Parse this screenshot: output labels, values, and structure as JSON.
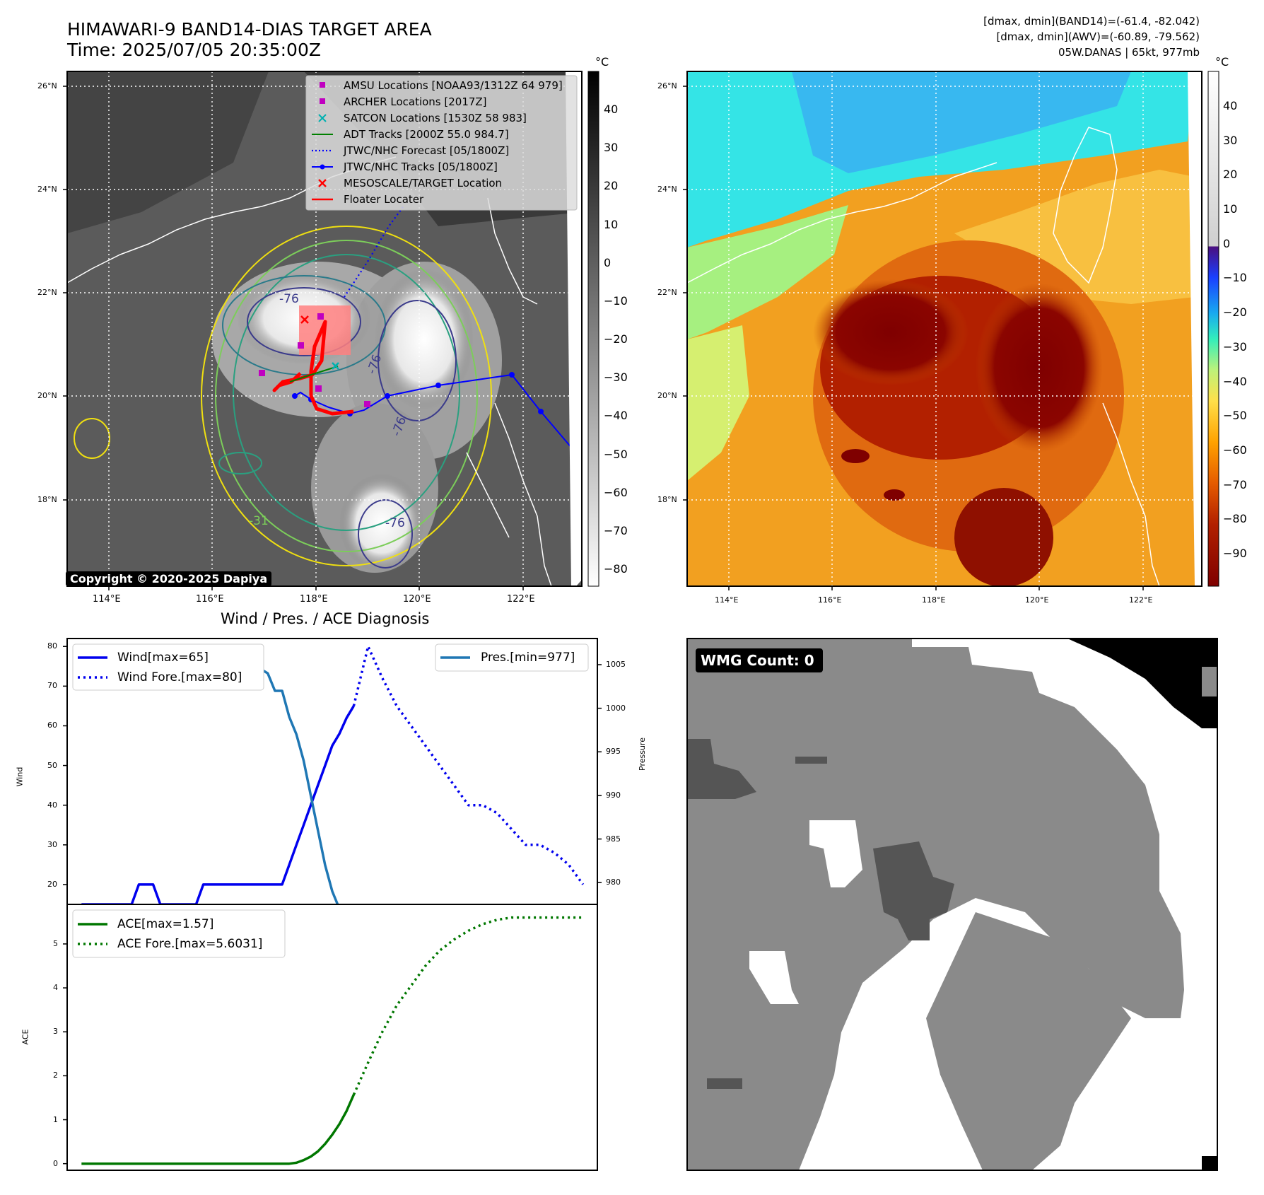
{
  "header": {
    "title_line1": "HIMAWARI-9 BAND14-DIAS TARGET AREA",
    "title_line2": "Time: 2025/07/05 20:35:00Z",
    "right_line1": "[dmax, dmin](BAND14)=(-61.4, -82.042)",
    "right_line2": "[dmax, dmin](AWV)=(-60.89, -79.562)",
    "right_line3": "05W.DANAS | 65kt, 977mb"
  },
  "map": {
    "lon_ticks": [
      "114°E",
      "116°E",
      "118°E",
      "120°E",
      "122°E"
    ],
    "lat_ticks": [
      "26°N",
      "24°N",
      "22°N",
      "20°N",
      "18°N"
    ],
    "contour_labels": [
      "-76",
      "-76",
      "-76",
      "-76",
      "-31"
    ],
    "copyright": "Copyright © 2020-2025 Dapiya",
    "legend": [
      {
        "label": "AMSU Locations [NOAA93/1312Z 64 979]",
        "color": "#c000c0",
        "marker": "square"
      },
      {
        "label": "ARCHER Locations [2017Z]",
        "color": "#c000c0",
        "marker": "square"
      },
      {
        "label": "SATCON Locations [1530Z 58 983]",
        "color": "#00b0b0",
        "marker": "x"
      },
      {
        "label": "ADT Tracks [2000Z 55.0 984.7]",
        "color": "#008000",
        "marker": "line"
      },
      {
        "label": "JTWC/NHC Forecast [05/1800Z]",
        "color": "#0000ff",
        "marker": "dotted"
      },
      {
        "label": "JTWC/NHC Tracks [05/1800Z]",
        "color": "#0000ff",
        "marker": "line-dot"
      },
      {
        "label": "MESOSCALE/TARGET Location",
        "color": "#ff0000",
        "marker": "x"
      },
      {
        "label": "Floater Locater",
        "color": "#ff0000",
        "marker": "line"
      }
    ]
  },
  "colorbar_gray": {
    "unit": "°C",
    "ticks": [
      "40",
      "30",
      "20",
      "10",
      "0",
      "−10",
      "−20",
      "−30",
      "−40",
      "−50",
      "−60",
      "−70",
      "−80"
    ]
  },
  "colorbar_color": {
    "unit": "°C",
    "ticks": [
      "40",
      "30",
      "20",
      "10",
      "0",
      "−10",
      "−20",
      "−30",
      "−40",
      "−50",
      "−60",
      "−70",
      "−80",
      "−90"
    ]
  },
  "chart_data": [
    {
      "type": "line",
      "title": "Wind / Pres. / ACE Diagnosis",
      "ylabel": "Wind",
      "ylabel_right": "Pressure",
      "ylim": [
        15,
        82
      ],
      "ylim_right": [
        977.5,
        1008
      ],
      "yticks": [
        20,
        30,
        40,
        50,
        60,
        70,
        80
      ],
      "yticks_right": [
        980,
        985,
        990,
        995,
        1000,
        1005
      ],
      "legend_left": [
        "Wind[max=65]",
        "Wind Fore.[max=80]"
      ],
      "legend_right": [
        "Pres.[min=977]"
      ],
      "series": [
        {
          "name": "Wind[max=65]",
          "axis": "left",
          "style": "solid",
          "color": "#0000ee",
          "x": [
            0,
            1,
            2,
            3,
            4,
            5,
            6,
            7,
            8,
            9,
            10,
            11,
            12,
            13,
            14,
            15,
            16,
            17,
            18,
            19,
            20,
            21,
            22,
            23,
            24,
            25,
            26,
            27,
            28,
            29,
            30,
            31,
            32,
            33,
            34,
            35,
            36,
            37,
            38
          ],
          "values": [
            15,
            15,
            15,
            15,
            15,
            15,
            15,
            15,
            20,
            20,
            20,
            15,
            15,
            15,
            15,
            15,
            15,
            20,
            20,
            20,
            20,
            20,
            20,
            20,
            20,
            20,
            20,
            20,
            20,
            25,
            30,
            35,
            40,
            45,
            50,
            55,
            58,
            62,
            65
          ]
        },
        {
          "name": "Wind Fore.[max=80]",
          "axis": "left",
          "style": "dotted",
          "color": "#0000ee",
          "x": [
            38,
            40,
            42,
            44,
            46,
            48,
            50,
            52,
            54,
            56,
            58,
            60,
            62,
            64,
            66,
            68,
            70
          ],
          "values": [
            65,
            80,
            72,
            65,
            60,
            55,
            50,
            45,
            40,
            40,
            38,
            34,
            30,
            30,
            28,
            25,
            20
          ]
        },
        {
          "name": "Pres.[min=977]",
          "axis": "right",
          "style": "solid",
          "color": "#1f77b4",
          "x": [
            0,
            2,
            4,
            5,
            6,
            8,
            10,
            12,
            13,
            14,
            15,
            16,
            17,
            18,
            19,
            20,
            21,
            22,
            24,
            26,
            27,
            28,
            29,
            30,
            31,
            32,
            33,
            34,
            35,
            36,
            37,
            38
          ],
          "values": [
            1007,
            1007,
            1007,
            1005,
            1004,
            1004,
            1004,
            1005,
            1005,
            1005,
            1006,
            1006,
            1005,
            1006,
            1006,
            1006,
            1004,
            1005,
            1005,
            1004,
            1002,
            1002,
            999,
            997,
            994,
            990,
            986,
            982,
            979,
            977,
            977,
            977
          ]
        }
      ]
    },
    {
      "type": "line",
      "ylabel": "ACE",
      "ylim": [
        -0.15,
        5.9
      ],
      "yticks": [
        0,
        1,
        2,
        3,
        4,
        5
      ],
      "legend": [
        "ACE[max=1.57]",
        "ACE Fore.[max=5.6031]"
      ],
      "series": [
        {
          "name": "ACE[max=1.57]",
          "style": "solid",
          "color": "#007700",
          "x": [
            0,
            10,
            20,
            29,
            30,
            31,
            32,
            33,
            34,
            35,
            36,
            37,
            38
          ],
          "values": [
            0,
            0,
            0,
            0,
            0.02,
            0.08,
            0.16,
            0.28,
            0.45,
            0.66,
            0.9,
            1.2,
            1.57
          ]
        },
        {
          "name": "ACE Fore.[max=5.6031]",
          "style": "dotted",
          "color": "#007700",
          "x": [
            38,
            40,
            42,
            44,
            46,
            48,
            50,
            52,
            54,
            56,
            58,
            60,
            62,
            64,
            66,
            68,
            70
          ],
          "values": [
            1.57,
            2.3,
            3.0,
            3.6,
            4.05,
            4.5,
            4.85,
            5.1,
            5.3,
            5.45,
            5.55,
            5.6,
            5.6,
            5.6,
            5.6,
            5.6,
            5.6
          ]
        }
      ]
    }
  ],
  "wmg": {
    "label": "WMG Count: 0"
  }
}
